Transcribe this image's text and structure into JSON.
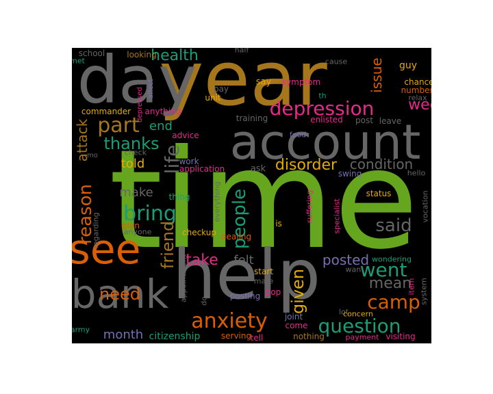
{
  "colors": {
    "background": "#000000",
    "page": "#ffffff",
    "green": "#66a61e",
    "gold": "#a6761d",
    "gray": "#666666",
    "orange": "#d95f02",
    "pink": "#e7298a",
    "teal": "#1b9e77",
    "purple": "#7570b3",
    "yellow": "#e6ab02"
  },
  "words": [
    {
      "text": "time",
      "color": "green"
    },
    {
      "text": "year",
      "color": "gold"
    },
    {
      "text": "day",
      "color": "gray"
    },
    {
      "text": "help",
      "color": "gray"
    },
    {
      "text": "account",
      "color": "gray"
    },
    {
      "text": "see",
      "color": "orange"
    },
    {
      "text": "bank",
      "color": "gray"
    },
    {
      "text": "depression",
      "color": "pink"
    },
    {
      "text": "anxiety",
      "color": "orange"
    },
    {
      "text": "question",
      "color": "teal"
    },
    {
      "text": "camp",
      "color": "orange"
    },
    {
      "text": "people",
      "color": "teal"
    },
    {
      "text": "bring",
      "color": "teal"
    },
    {
      "text": "part",
      "color": "gold"
    },
    {
      "text": "week",
      "color": "pink"
    },
    {
      "text": "health",
      "color": "teal"
    },
    {
      "text": "thanks",
      "color": "teal"
    },
    {
      "text": "life",
      "color": "gray"
    },
    {
      "text": "reason",
      "color": "orange"
    },
    {
      "text": "friend",
      "color": "gold"
    },
    {
      "text": "went",
      "color": "teal"
    },
    {
      "text": "said",
      "color": "gray"
    },
    {
      "text": "mean",
      "color": "gray"
    },
    {
      "text": "disorder",
      "color": "yellow"
    },
    {
      "text": "condition",
      "color": "gray"
    },
    {
      "text": "need",
      "color": "orange"
    },
    {
      "text": "take",
      "color": "pink"
    },
    {
      "text": "given",
      "color": "yellow"
    },
    {
      "text": "posted",
      "color": "purple"
    },
    {
      "text": "month",
      "color": "purple"
    },
    {
      "text": "attack",
      "color": "gold"
    },
    {
      "text": "issue",
      "color": "orange"
    },
    {
      "text": "felt",
      "color": "gray"
    },
    {
      "text": "make",
      "color": "gray"
    },
    {
      "text": "told",
      "color": "yellow"
    },
    {
      "text": "end",
      "color": "teal"
    },
    {
      "text": "citizenship",
      "color": "teal"
    },
    {
      "text": "school",
      "color": "gray"
    },
    {
      "text": "met",
      "color": "teal"
    },
    {
      "text": "looking",
      "color": "gold"
    },
    {
      "text": "half",
      "color": "gray"
    },
    {
      "text": "cause",
      "color": "gray"
    },
    {
      "text": "guy",
      "color": "yellow"
    },
    {
      "text": "depressed",
      "color": "pink"
    },
    {
      "text": "affect",
      "color": "purple"
    },
    {
      "text": "pay",
      "color": "gray"
    },
    {
      "text": "th",
      "color": "teal"
    },
    {
      "text": "say",
      "color": "yellow"
    },
    {
      "text": "symptom",
      "color": "pink"
    },
    {
      "text": "chance",
      "color": "yellow"
    },
    {
      "text": "number",
      "color": "orange"
    },
    {
      "text": "relax",
      "color": "gray"
    },
    {
      "text": "commander",
      "color": "yellow"
    },
    {
      "text": "anything",
      "color": "pink"
    },
    {
      "text": "unit",
      "color": "yellow"
    },
    {
      "text": "training",
      "color": "gray"
    },
    {
      "text": "enlisted",
      "color": "pink"
    },
    {
      "text": "post",
      "color": "gray"
    },
    {
      "text": "leave",
      "color": "gray"
    },
    {
      "text": "advice",
      "color": "pink"
    },
    {
      "text": "check",
      "color": "gray"
    },
    {
      "text": "food",
      "color": "purple"
    },
    {
      "text": "mo",
      "color": "gray"
    },
    {
      "text": "work",
      "color": "purple"
    },
    {
      "text": "application",
      "color": "pink"
    },
    {
      "text": "ask",
      "color": "gray"
    },
    {
      "text": "swing",
      "color": "purple"
    },
    {
      "text": "hello",
      "color": "gray"
    },
    {
      "text": "everything",
      "color": "gray"
    },
    {
      "text": "thing",
      "color": "teal"
    },
    {
      "text": "suffering",
      "color": "pink"
    },
    {
      "text": "specialist",
      "color": "pink"
    },
    {
      "text": "status",
      "color": "yellow"
    },
    {
      "text": "vocation",
      "color": "gray"
    },
    {
      "text": "regarding",
      "color": "gray"
    },
    {
      "text": "anyone",
      "color": "gray"
    },
    {
      "text": "plan",
      "color": "orange"
    },
    {
      "text": "checkup",
      "color": "yellow"
    },
    {
      "text": "dealing",
      "color": "orange"
    },
    {
      "text": "is",
      "color": "yellow"
    },
    {
      "text": "wondering",
      "color": "teal"
    },
    {
      "text": "appointment",
      "color": "gray"
    },
    {
      "text": "start",
      "color": "yellow"
    },
    {
      "text": "want",
      "color": "gray"
    },
    {
      "text": "item",
      "color": "pink"
    },
    {
      "text": "system",
      "color": "gray"
    },
    {
      "text": "mate",
      "color": "gray"
    },
    {
      "text": "do",
      "color": "gray"
    },
    {
      "text": "posting",
      "color": "purple"
    },
    {
      "text": "pop",
      "color": "pink"
    },
    {
      "text": "lot",
      "color": "gray"
    },
    {
      "text": "concern",
      "color": "yellow"
    },
    {
      "text": "joint",
      "color": "purple"
    },
    {
      "text": "come",
      "color": "pink"
    },
    {
      "text": "army",
      "color": "teal"
    },
    {
      "text": "serving",
      "color": "orange"
    },
    {
      "text": "tell",
      "color": "pink"
    },
    {
      "text": "nothing",
      "color": "gold"
    },
    {
      "text": "payment",
      "color": "pink"
    },
    {
      "text": "visiting",
      "color": "pink"
    }
  ]
}
